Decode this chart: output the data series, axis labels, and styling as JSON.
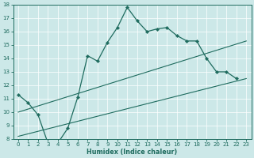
{
  "xlabel": "Humidex (Indice chaleur)",
  "bg_color": "#cce8e8",
  "line_color": "#1e6b5e",
  "grid_color": "#ffffff",
  "xlim": [
    -0.5,
    23.5
  ],
  "ylim": [
    8,
    18
  ],
  "xticks": [
    0,
    1,
    2,
    3,
    4,
    5,
    6,
    7,
    8,
    9,
    10,
    11,
    12,
    13,
    14,
    15,
    16,
    17,
    18,
    19,
    20,
    21,
    22,
    23
  ],
  "yticks": [
    8,
    9,
    10,
    11,
    12,
    13,
    14,
    15,
    16,
    17,
    18
  ],
  "line1_x": [
    0,
    1,
    2,
    3,
    4,
    5,
    6,
    7,
    8,
    9,
    10,
    11,
    12,
    13,
    14,
    15,
    16,
    17,
    18,
    19,
    20,
    21,
    22
  ],
  "line1_y": [
    11.3,
    10.7,
    9.8,
    7.7,
    7.7,
    8.8,
    11.1,
    14.2,
    13.8,
    15.2,
    16.3,
    17.8,
    16.8,
    16.0,
    16.2,
    16.3,
    15.7,
    15.3,
    15.3,
    14.0,
    13.0,
    13.0,
    12.5
  ],
  "line2_x": [
    0,
    23
  ],
  "line2_y": [
    8.2,
    12.5
  ],
  "line3_x": [
    0,
    23
  ],
  "line3_y": [
    10.0,
    15.3
  ]
}
